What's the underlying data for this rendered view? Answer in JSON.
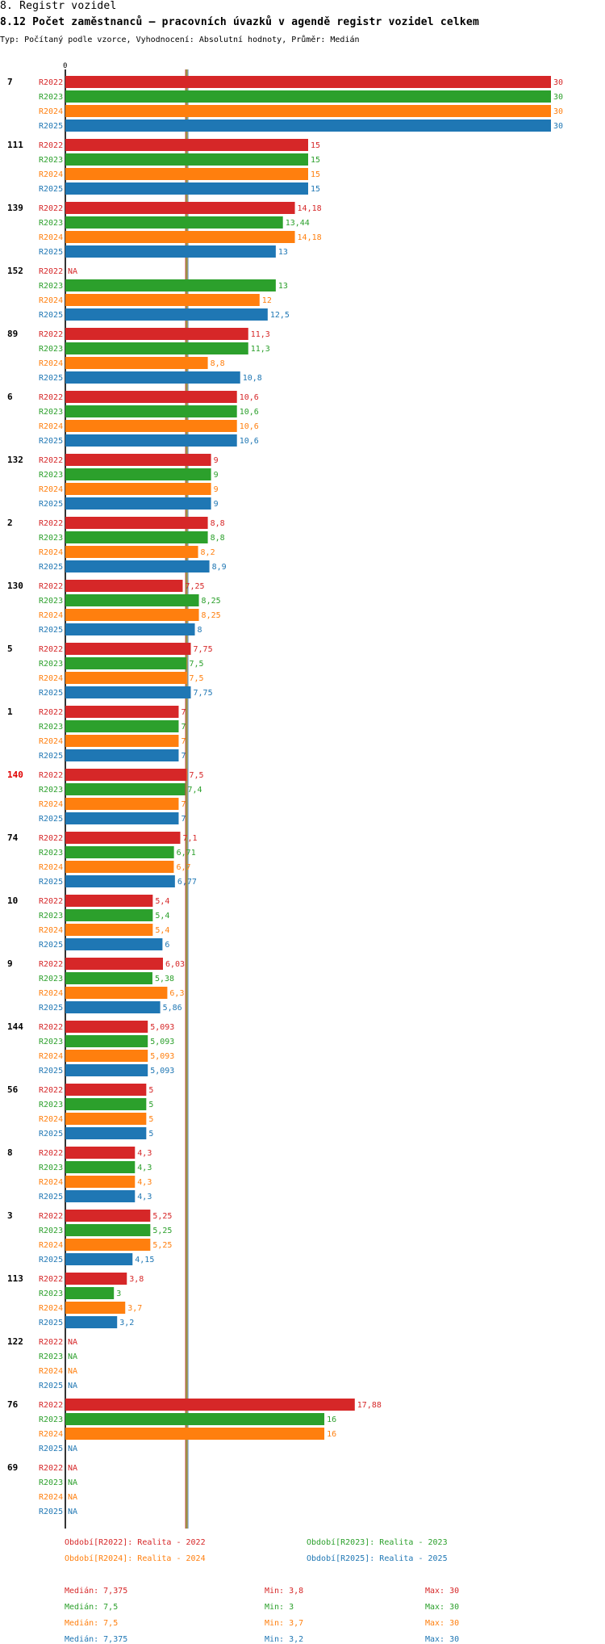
{
  "header": {
    "section": "8. Registr vozidel",
    "title": "8.12 Počet zaměstnanců – pracovních úvazků v agendě registr vozidel celkem",
    "subtitle": "Typ: Počítaný podle vzorce, Vyhodnocení: Absolutní hodnoty, Průměr: Medián"
  },
  "colors": {
    "R2022": "#d62728",
    "R2023": "#2ca02c",
    "R2024": "#ff7f0e",
    "R2025": "#1f77b4",
    "highlight_label": "#e00000"
  },
  "chart_data": {
    "type": "bar",
    "orientation": "horizontal",
    "xlim": [
      0,
      30
    ],
    "zero_label": "0",
    "median_line": 7.5,
    "series_names": [
      "R2022",
      "R2023",
      "R2024",
      "R2025"
    ],
    "groups": [
      {
        "label": "7",
        "values": [
          30,
          30,
          30,
          30
        ],
        "labels": [
          "30",
          "30",
          "30",
          "30"
        ]
      },
      {
        "label": "111",
        "values": [
          15,
          15,
          15,
          15
        ],
        "labels": [
          "15",
          "15",
          "15",
          "15"
        ]
      },
      {
        "label": "139",
        "values": [
          14.18,
          13.44,
          14.18,
          13
        ],
        "labels": [
          "14,18",
          "13,44",
          "14,18",
          "13"
        ]
      },
      {
        "label": "152",
        "values": [
          null,
          13,
          12,
          12.5
        ],
        "labels": [
          "NA",
          "13",
          "12",
          "12,5"
        ]
      },
      {
        "label": "89",
        "values": [
          11.3,
          11.3,
          8.8,
          10.8
        ],
        "labels": [
          "11,3",
          "11,3",
          "8,8",
          "10,8"
        ]
      },
      {
        "label": "6",
        "values": [
          10.6,
          10.6,
          10.6,
          10.6
        ],
        "labels": [
          "10,6",
          "10,6",
          "10,6",
          "10,6"
        ]
      },
      {
        "label": "132",
        "values": [
          9,
          9,
          9,
          9
        ],
        "labels": [
          "9",
          "9",
          "9",
          "9"
        ]
      },
      {
        "label": "2",
        "values": [
          8.8,
          8.8,
          8.2,
          8.9
        ],
        "labels": [
          "8,8",
          "8,8",
          "8,2",
          "8,9"
        ]
      },
      {
        "label": "130",
        "values": [
          7.25,
          8.25,
          8.25,
          8
        ],
        "labels": [
          "7,25",
          "8,25",
          "8,25",
          "8"
        ]
      },
      {
        "label": "5",
        "values": [
          7.75,
          7.5,
          7.5,
          7.75
        ],
        "labels": [
          "7,75",
          "7,5",
          "7,5",
          "7,75"
        ]
      },
      {
        "label": "1",
        "values": [
          7,
          7,
          7,
          7
        ],
        "labels": [
          "7",
          "7",
          "7",
          "7"
        ]
      },
      {
        "label": "140",
        "values": [
          7.5,
          7.4,
          7,
          7
        ],
        "labels": [
          "7,5",
          "7,4",
          "7",
          "7"
        ],
        "highlight": true
      },
      {
        "label": "74",
        "values": [
          7.1,
          6.71,
          6.7,
          6.77
        ],
        "labels": [
          "7,1",
          "6,71",
          "6,7",
          "6,77"
        ]
      },
      {
        "label": "10",
        "values": [
          5.4,
          5.4,
          5.4,
          6
        ],
        "labels": [
          "5,4",
          "5,4",
          "5,4",
          "6"
        ]
      },
      {
        "label": "9",
        "values": [
          6.03,
          5.38,
          6.3,
          5.86
        ],
        "labels": [
          "6,03",
          "5,38",
          "6,3",
          "5,86"
        ]
      },
      {
        "label": "144",
        "values": [
          5.093,
          5.093,
          5.093,
          5.093
        ],
        "labels": [
          "5,093",
          "5,093",
          "5,093",
          "5,093"
        ]
      },
      {
        "label": "56",
        "values": [
          5,
          5,
          5,
          5
        ],
        "labels": [
          "5",
          "5",
          "5",
          "5"
        ]
      },
      {
        "label": "8",
        "values": [
          4.3,
          4.3,
          4.3,
          4.3
        ],
        "labels": [
          "4,3",
          "4,3",
          "4,3",
          "4,3"
        ]
      },
      {
        "label": "3",
        "values": [
          5.25,
          5.25,
          5.25,
          4.15
        ],
        "labels": [
          "5,25",
          "5,25",
          "5,25",
          "4,15"
        ]
      },
      {
        "label": "113",
        "values": [
          3.8,
          3,
          3.7,
          3.2
        ],
        "labels": [
          "3,8",
          "3",
          "3,7",
          "3,2"
        ]
      },
      {
        "label": "122",
        "values": [
          null,
          null,
          null,
          null
        ],
        "labels": [
          "NA",
          "NA",
          "NA",
          "NA"
        ]
      },
      {
        "label": "76",
        "values": [
          17.88,
          16,
          16,
          null
        ],
        "labels": [
          "17,88",
          "16",
          "16",
          "NA"
        ]
      },
      {
        "label": "69",
        "values": [
          null,
          null,
          null,
          null
        ],
        "labels": [
          "NA",
          "NA",
          "NA",
          "NA"
        ]
      }
    ]
  },
  "legend": {
    "periods": [
      {
        "text": "Období[R2022]: Realita - 2022",
        "series": "R2022"
      },
      {
        "text": "Období[R2023]: Realita - 2023",
        "series": "R2023"
      },
      {
        "text": "Období[R2024]: Realita - 2024",
        "series": "R2024"
      },
      {
        "text": "Období[R2025]: Realita - 2025",
        "series": "R2025"
      }
    ],
    "stats": [
      {
        "series": "R2022",
        "median": "Medián: 7,375",
        "min": "Min: 3,8",
        "max": "Max: 30"
      },
      {
        "series": "R2023",
        "median": "Medián: 7,5",
        "min": "Min: 3",
        "max": "Max: 30"
      },
      {
        "series": "R2024",
        "median": "Medián: 7,5",
        "min": "Min: 3,7",
        "max": "Max: 30"
      },
      {
        "series": "R2025",
        "median": "Medián: 7,375",
        "min": "Min: 3,2",
        "max": "Max: 30"
      }
    ]
  }
}
